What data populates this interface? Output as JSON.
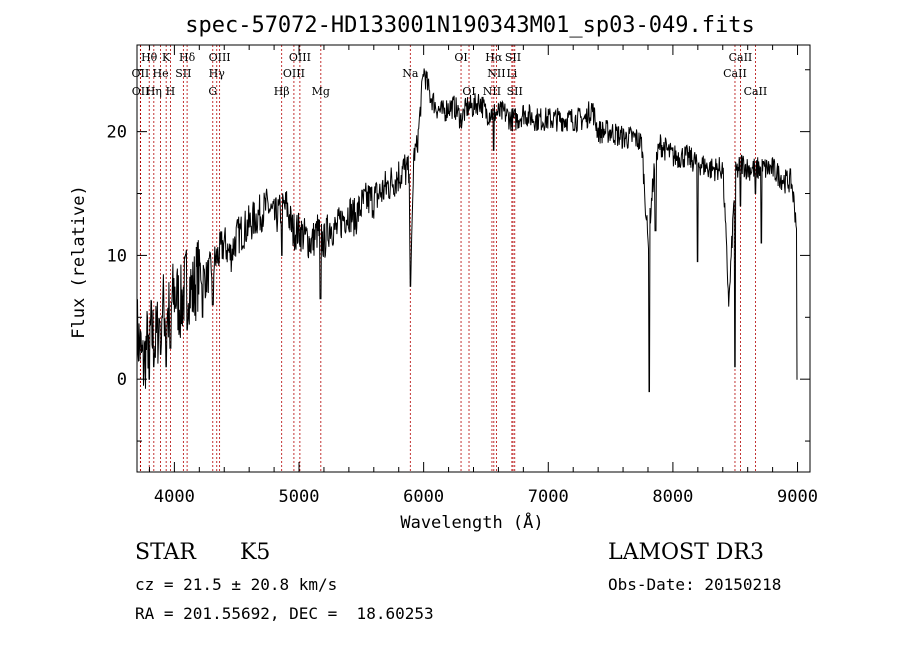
{
  "chart_data": {
    "type": "line",
    "title": "spec-57072-HD133001N190343M01_sp03-049.fits",
    "xlabel": "Wavelength (Å)",
    "ylabel": "Flux (relative)",
    "xlim": [
      3700,
      9100
    ],
    "ylim": [
      -7.5,
      27
    ],
    "xticks": [
      4000,
      5000,
      6000,
      7000,
      8000,
      9000
    ],
    "yticks": [
      0,
      10,
      20
    ],
    "grid": false,
    "series": [
      {
        "name": "flux",
        "x": [
          3700,
          3750,
          3800,
          3850,
          3900,
          3950,
          4000,
          4050,
          4100,
          4150,
          4200,
          4250,
          4300,
          4350,
          4400,
          4450,
          4500,
          4550,
          4600,
          4650,
          4700,
          4750,
          4800,
          4850,
          4900,
          4950,
          5000,
          5050,
          5100,
          5150,
          5200,
          5250,
          5300,
          5350,
          5400,
          5450,
          5500,
          5550,
          5600,
          5650,
          5700,
          5750,
          5800,
          5850,
          5880,
          5900,
          5920,
          5950,
          6000,
          6050,
          6100,
          6150,
          6200,
          6250,
          6300,
          6350,
          6400,
          6450,
          6500,
          6550,
          6600,
          6650,
          6700,
          6750,
          6800,
          6900,
          7000,
          7100,
          7200,
          7300,
          7350,
          7400,
          7500,
          7600,
          7700,
          7750,
          7800,
          7850,
          7900,
          8000,
          8100,
          8200,
          8300,
          8400,
          8450,
          8500,
          8550,
          8600,
          8650,
          8700,
          8800,
          8900,
          8950,
          9000
        ],
        "y": [
          4,
          1,
          4,
          3,
          6,
          5,
          7,
          6,
          8,
          7,
          9,
          8,
          9,
          10,
          11,
          10,
          11.5,
          12,
          12.5,
          13,
          13.5,
          14,
          13,
          13.5,
          14,
          12,
          12,
          11.5,
          11,
          12,
          11,
          12.5,
          12,
          13,
          13.5,
          13,
          14,
          14.5,
          14.5,
          15,
          15.5,
          16,
          16.5,
          17,
          16.5,
          9,
          18,
          19,
          25,
          23,
          22,
          21.5,
          22,
          22,
          21,
          22,
          22,
          22.5,
          21.5,
          21.5,
          21.5,
          21.5,
          21,
          21,
          21.5,
          21,
          21,
          21,
          21,
          21,
          22,
          20,
          20,
          19.5,
          19.5,
          19,
          11,
          17,
          19,
          18,
          18,
          17.5,
          17,
          17,
          6,
          16.5,
          17.5,
          17,
          17,
          17,
          17,
          16,
          16,
          12
        ]
      }
    ],
    "absorption_features": [
      {
        "x": 3798,
        "y": 0
      },
      {
        "x": 3835,
        "y": 1
      },
      {
        "x": 3889,
        "y": 2
      },
      {
        "x": 3934,
        "y": 1
      },
      {
        "x": 3968,
        "y": 2.5
      },
      {
        "x": 4102,
        "y": 4
      },
      {
        "x": 4227,
        "y": 5
      },
      {
        "x": 4308,
        "y": 6
      },
      {
        "x": 4861,
        "y": 10
      },
      {
        "x": 5172,
        "y": 6.5
      },
      {
        "x": 5893,
        "y": 7.5
      },
      {
        "x": 6563,
        "y": 18.5
      },
      {
        "x": 7810,
        "y": -1
      },
      {
        "x": 7860,
        "y": 12
      },
      {
        "x": 8198,
        "y": 9.5
      },
      {
        "x": 8498,
        "y": 1
      },
      {
        "x": 8542,
        "y": 14
      },
      {
        "x": 8662,
        "y": 15
      },
      {
        "x": 8710,
        "y": 11
      },
      {
        "x": 9000,
        "y": 0
      }
    ],
    "lines": [
      {
        "label": "Hθ",
        "x": 3798,
        "row": 0
      },
      {
        "label": "K",
        "x": 3934,
        "row": 0
      },
      {
        "label": "Hδ",
        "x": 4102,
        "row": 0
      },
      {
        "label": "OIII",
        "x": 4363,
        "row": 0
      },
      {
        "label": "OIII",
        "x": 5007,
        "row": 0
      },
      {
        "label": "OI",
        "x": 6300,
        "row": 0
      },
      {
        "label": "Hα",
        "x": 6563,
        "row": 0
      },
      {
        "label": "SII",
        "x": 6717,
        "row": 0
      },
      {
        "label": "CaII",
        "x": 8542,
        "row": 0
      },
      {
        "label": "OII",
        "x": 3727,
        "row": 1
      },
      {
        "label": "He",
        "x": 3889,
        "row": 1
      },
      {
        "label": "SII",
        "x": 4072,
        "row": 1
      },
      {
        "label": "Hγ",
        "x": 4340,
        "row": 1
      },
      {
        "label": "OIII",
        "x": 4959,
        "row": 1
      },
      {
        "label": "Na",
        "x": 5893,
        "row": 1
      },
      {
        "label": "NII",
        "x": 6584,
        "row": 1
      },
      {
        "label": "Li",
        "x": 6708,
        "row": 1
      },
      {
        "label": "CaII",
        "x": 8498,
        "row": 1
      },
      {
        "label": "OII",
        "x": 3729,
        "row": 2
      },
      {
        "label": "Hη",
        "x": 3835,
        "row": 2
      },
      {
        "label": "H",
        "x": 3968,
        "row": 2
      },
      {
        "label": "G",
        "x": 4308,
        "row": 2
      },
      {
        "label": "Hβ",
        "x": 4861,
        "row": 2
      },
      {
        "label": "Mg",
        "x": 5175,
        "row": 2
      },
      {
        "label": "OI",
        "x": 6364,
        "row": 2
      },
      {
        "label": "NII",
        "x": 6548,
        "row": 2
      },
      {
        "label": "SII",
        "x": 6731,
        "row": 2
      },
      {
        "label": "CaII",
        "x": 8662,
        "row": 2
      }
    ]
  },
  "info": {
    "class_label": "STAR",
    "subclass": "K5",
    "survey": "LAMOST DR3",
    "cz": "cz = 21.5 ± 20.8 km/s",
    "obs_date": "Obs-Date: 20150218",
    "coords": "RA = 201.55692, DEC =  18.60253"
  }
}
